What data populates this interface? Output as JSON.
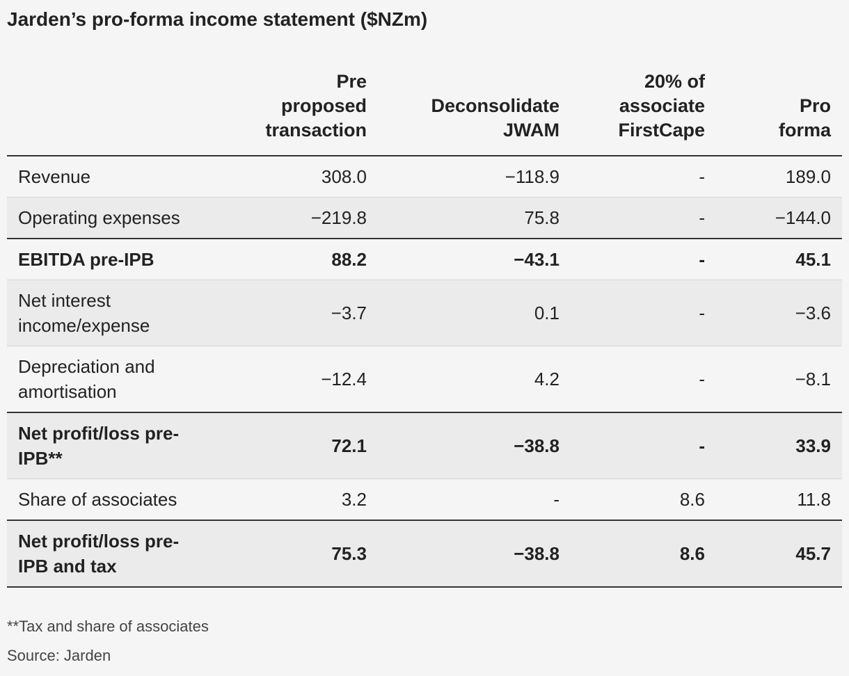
{
  "title": "Jarden’s pro-forma income statement ($NZm)",
  "table": {
    "columns": [
      "Pre proposed transaction",
      "Deconsolidate JWAM",
      "20% of associate FirstCape",
      "Pro forma"
    ],
    "rows": [
      {
        "label": "Revenue",
        "values": [
          "308.0",
          "−118.9",
          "-",
          "189.0"
        ],
        "bold": false
      },
      {
        "label": "Operating expenses",
        "values": [
          "−219.8",
          "75.8",
          "-",
          "−144.0"
        ],
        "bold": false
      },
      {
        "label": "EBITDA pre-IPB",
        "values": [
          "88.2",
          "−43.1",
          "-",
          "45.1"
        ],
        "bold": true
      },
      {
        "label": "Net interest income/expense",
        "values": [
          "−3.7",
          "0.1",
          "-",
          "−3.6"
        ],
        "bold": false
      },
      {
        "label": "Depreciation and amortisation",
        "values": [
          "−12.4",
          "4.2",
          "-",
          "−8.1"
        ],
        "bold": false
      },
      {
        "label": "Net profit/loss pre-IPB**",
        "values": [
          "72.1",
          "−38.8",
          "-",
          "33.9"
        ],
        "bold": true
      },
      {
        "label": "Share of associates",
        "values": [
          "3.2",
          "-",
          "8.6",
          "11.8"
        ],
        "bold": false
      },
      {
        "label": "Net profit/loss pre-IPB and tax",
        "values": [
          "75.3",
          "−38.8",
          "8.6",
          "45.7"
        ],
        "bold": true
      }
    ]
  },
  "footnote": "**Tax and share of associates",
  "source": "Source: Jarden"
}
